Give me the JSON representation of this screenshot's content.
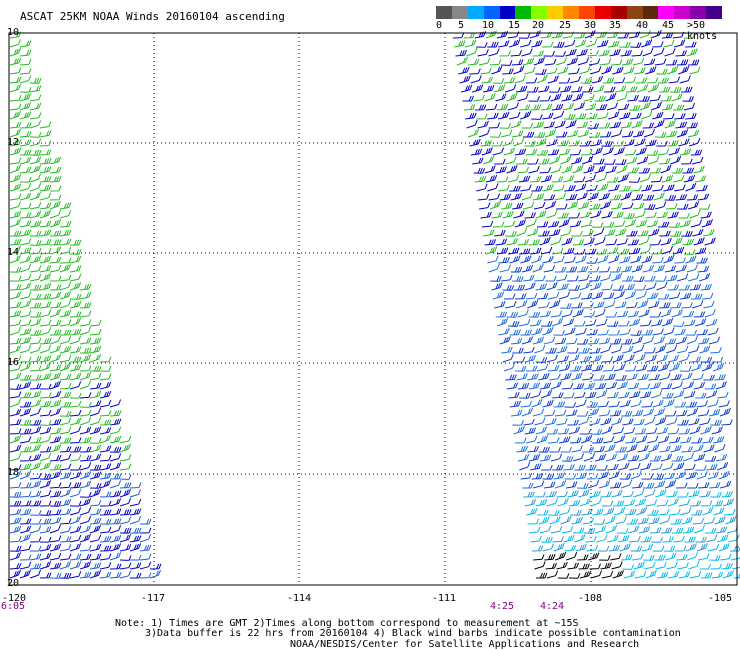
{
  "title": "ASCAT 25KM NOAA Winds 20160104 ascending",
  "legend": {
    "colors": [
      "#555555",
      "#888888",
      "#00aaff",
      "#0066ff",
      "#0000c8",
      "#00bb00",
      "#88ff00",
      "#ffcc00",
      "#ff8800",
      "#ff4400",
      "#e80000",
      "#aa0000",
      "#8b4513",
      "#5a2a0a",
      "#ff00ff",
      "#cc00cc",
      "#8800aa",
      "#440088"
    ],
    "labels": [
      "0",
      "5",
      "10",
      "15",
      "20",
      "25",
      "30",
      "35",
      "40",
      "45",
      ">50 knots"
    ]
  },
  "lat_labels": [
    "10",
    "12",
    "14",
    "16",
    "18",
    "20"
  ],
  "lon_labels": [
    "-120",
    "-117",
    "-114",
    "-111",
    "-108",
    "-105"
  ],
  "times": [
    "6:05",
    "4:25",
    "4:24"
  ],
  "notes": {
    "line1": "Note: 1) Times are GMT 2)Times along bottom correspond to measurement at ~15S",
    "line2": "3)Data buffer is 22 hrs from 20160104 4) Black wind barbs indicate possible contamination",
    "line3": "NOAA/NESDIS/Center for Satellite Applications and Research"
  }
}
